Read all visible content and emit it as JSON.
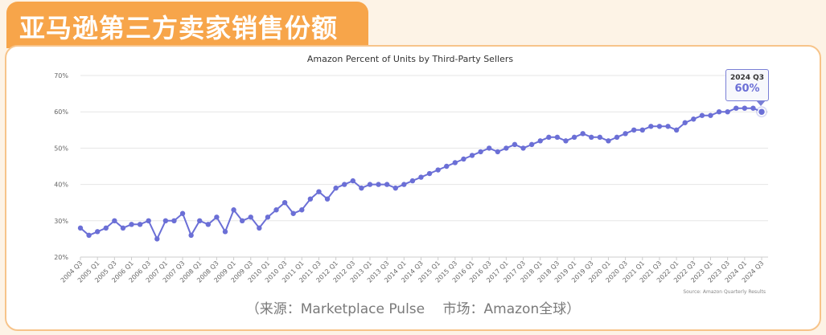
{
  "header": {
    "title": "亚马逊第三方卖家销售份额"
  },
  "caption": "（来源：Marketplace Pulse　 市场：Amazon全球）",
  "colors": {
    "accent": "#f7a54a",
    "series": "#6b6fd6"
  },
  "tooltip": {
    "label": "2024 Q3",
    "value": "60%"
  },
  "chart_data": {
    "type": "line",
    "title": "Amazon Percent of Units by Third-Party Sellers",
    "source": "Source: Amazon Quarterly Results",
    "xlabel": "",
    "ylabel": "",
    "ylim": [
      20,
      70
    ],
    "yticks": [
      "20%",
      "30%",
      "40%",
      "50%",
      "60%",
      "70%"
    ],
    "xtick_labels": [
      "2004 Q3",
      "2005 Q1",
      "2005 Q3",
      "2006 Q1",
      "2006 Q3",
      "2007 Q1",
      "2007 Q3",
      "2008 Q1",
      "2008 Q3",
      "2009 Q1",
      "2009 Q3",
      "2010 Q1",
      "2010 Q3",
      "2011 Q1",
      "2011 Q3",
      "2012 Q1",
      "2012 Q3",
      "2013 Q1",
      "2013 Q3",
      "2014 Q1",
      "2014 Q3",
      "2015 Q1",
      "2015 Q3",
      "2016 Q1",
      "2016 Q3",
      "2017 Q1",
      "2017 Q3",
      "2018 Q1",
      "2018 Q3",
      "2019 Q1",
      "2019 Q3",
      "2020 Q1",
      "2020 Q3",
      "2021 Q1",
      "2021 Q3",
      "2022 Q1",
      "2022 Q3",
      "2023 Q1",
      "2023 Q3",
      "2024 Q1",
      "2024 Q3"
    ],
    "grid": true,
    "series": [
      {
        "values": [
          28,
          26,
          27,
          28,
          30,
          28,
          29,
          29,
          30,
          25,
          30,
          30,
          32,
          26,
          30,
          29,
          31,
          27,
          33,
          30,
          31,
          28,
          31,
          33,
          35,
          32,
          33,
          36,
          38,
          36,
          39,
          40,
          41,
          39,
          40,
          40,
          40,
          39,
          40,
          41,
          42,
          43,
          44,
          45,
          46,
          47,
          48,
          49,
          50,
          49,
          50,
          51,
          50,
          51,
          52,
          53,
          53,
          52,
          53,
          54,
          53,
          53,
          52,
          53,
          54,
          55,
          55,
          56,
          56,
          56,
          55,
          57,
          58,
          59,
          59,
          60,
          60,
          61,
          61,
          61,
          60
        ]
      }
    ]
  }
}
